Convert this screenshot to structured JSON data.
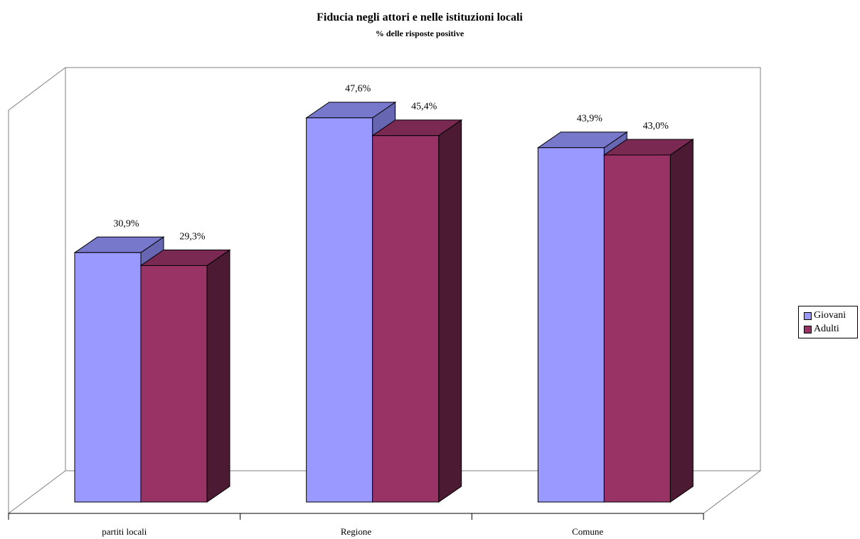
{
  "chart_data": {
    "type": "bar",
    "title": "Fiducia negli attori e nelle istituzioni locali",
    "subtitle": "% delle risposte positive",
    "categories": [
      "partiti locali",
      "Regione",
      "Comune"
    ],
    "series": [
      {
        "name": "Giovani",
        "values": [
          30.9,
          47.6,
          43.9
        ],
        "labels": [
          "30,9%",
          "47,6%",
          "43,9%"
        ],
        "color": "#9999ff"
      },
      {
        "name": "Adulti",
        "values": [
          29.3,
          45.4,
          43.0
        ],
        "labels": [
          "29,3%",
          "45,4%",
          "43,0%"
        ],
        "color": "#993366"
      }
    ],
    "ylim": [
      0,
      50
    ],
    "grid": false,
    "legend_position": "right",
    "three_d": true
  }
}
